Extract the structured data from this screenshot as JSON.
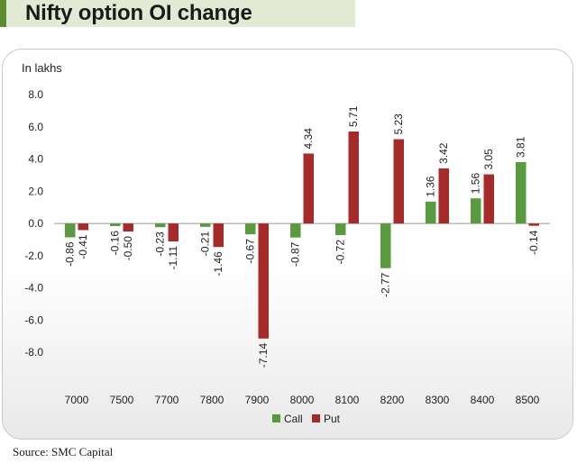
{
  "header": {
    "title": "Nifty option OI change"
  },
  "footer": {
    "source": "Source: SMC Capital"
  },
  "colors": {
    "call": "#5a9a3f",
    "put": "#a52a2a",
    "title_bg": "#e3ead3",
    "title_accent": "#5d8c2f"
  },
  "chart_data": {
    "type": "bar",
    "ylabel": "In lakhs",
    "categories": [
      "7000",
      "7500",
      "7700",
      "7800",
      "7900",
      "8000",
      "8100",
      "8200",
      "8300",
      "8400",
      "8500"
    ],
    "series": [
      {
        "name": "Call",
        "values": [
          -0.86,
          -0.16,
          -0.23,
          -0.21,
          -0.67,
          -0.87,
          -0.72,
          -2.77,
          1.36,
          1.56,
          3.81
        ]
      },
      {
        "name": "Put",
        "values": [
          -0.41,
          -0.5,
          -1.11,
          -1.46,
          -7.14,
          4.34,
          5.71,
          5.23,
          3.42,
          3.05,
          -0.14
        ]
      }
    ],
    "data_labels": {
      "Call": [
        "-0.86",
        "-0.16",
        "-0.23",
        "-0.21",
        "-0.67",
        "-0.87",
        "-0.72",
        "-2.77",
        "1.36",
        "1.56",
        "3.81"
      ],
      "Put": [
        "-0.41",
        "-0.50",
        "-1.11",
        "-1.46",
        "-7.14",
        "4.34",
        "5.71",
        "5.23",
        "3.42",
        "3.05",
        "-0.14"
      ]
    },
    "yticks": [
      "8.0",
      "6.0",
      "4.0",
      "2.0",
      "0.0",
      "-2.0",
      "-4.0",
      "-6.0",
      "-8.0"
    ],
    "ylim": [
      -10,
      8
    ],
    "grid": false,
    "legend": "bottom"
  }
}
